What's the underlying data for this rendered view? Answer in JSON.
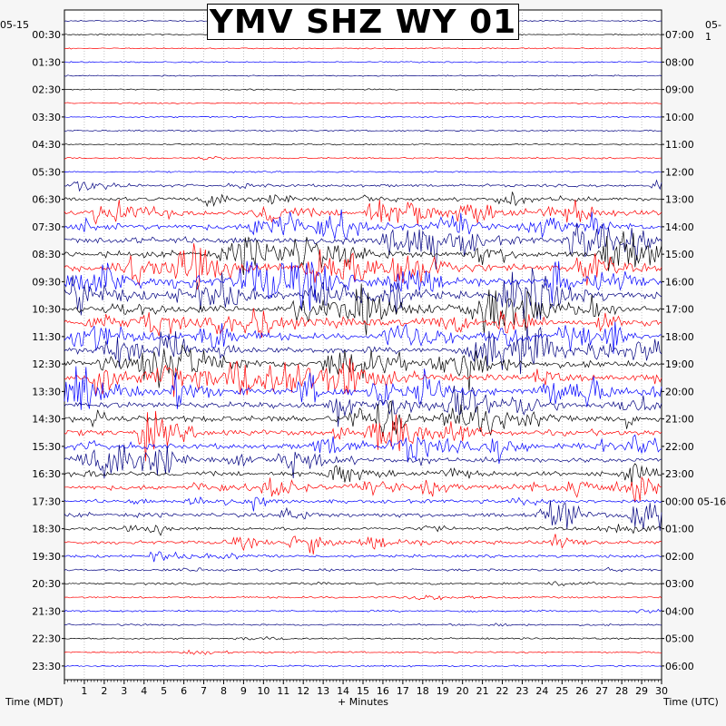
{
  "title": "YMV SHZ WY 01",
  "date_left": "05-15",
  "date_right": "05-1",
  "x_axis_label": "+ Minutes",
  "left_axis_label": "Time (MDT)",
  "right_axis_label": "Time (UTC)",
  "colors": {
    "background": "#f6f6f6",
    "plot_background": "#ffffff",
    "trace_cycle": [
      "#000080",
      "#000000",
      "#ff0000",
      "#0000ff"
    ],
    "grid": "#9a9a9a"
  },
  "chart_data": {
    "type": "helicorder",
    "station": "YMV SHZ WY 01",
    "minutes_per_line": 30,
    "xlim": [
      0,
      30
    ],
    "x_ticks": [
      1,
      2,
      3,
      4,
      5,
      6,
      7,
      8,
      9,
      10,
      11,
      12,
      13,
      14,
      15,
      16,
      17,
      18,
      19,
      20,
      21,
      22,
      23,
      24,
      25,
      26,
      27,
      28,
      29,
      30
    ],
    "left_time_labels": [
      "00:30",
      "01:30",
      "02:30",
      "03:30",
      "04:30",
      "05:30",
      "06:30",
      "07:30",
      "08:30",
      "09:30",
      "10:30",
      "11:30",
      "12:30",
      "13:30",
      "14:30",
      "15:30",
      "16:30",
      "17:30",
      "18:30",
      "19:30",
      "20:30",
      "21:30",
      "22:30",
      "23:30"
    ],
    "right_time_labels": [
      "07:00",
      "08:00",
      "09:00",
      "10:00",
      "11:00",
      "12:00",
      "13:00",
      "14:00",
      "15:00",
      "16:00",
      "17:00",
      "18:00",
      "19:00",
      "20:00",
      "21:00",
      "22:00",
      "23:00",
      "00:00 05-16",
      "01:00",
      "02:00",
      "03:00",
      "04:00",
      "05:00",
      "06:00"
    ],
    "line_count": 48,
    "activity_profile": [
      0.1,
      0.1,
      0.1,
      0.1,
      0.1,
      0.1,
      0.15,
      0.15,
      0.2,
      0.15,
      0.3,
      0.2,
      0.8,
      1.2,
      1.8,
      2.2,
      2.6,
      2.4,
      2.8,
      2.6,
      2.8,
      2.6,
      2.6,
      2.4,
      2.6,
      2.6,
      2.4,
      2.6,
      2.2,
      2.4,
      2.2,
      2.0,
      1.8,
      1.6,
      1.8,
      1.2,
      1.6,
      1.0,
      1.2,
      0.8,
      0.6,
      0.5,
      0.4,
      0.4,
      0.35,
      0.3,
      0.3,
      0.3
    ]
  }
}
